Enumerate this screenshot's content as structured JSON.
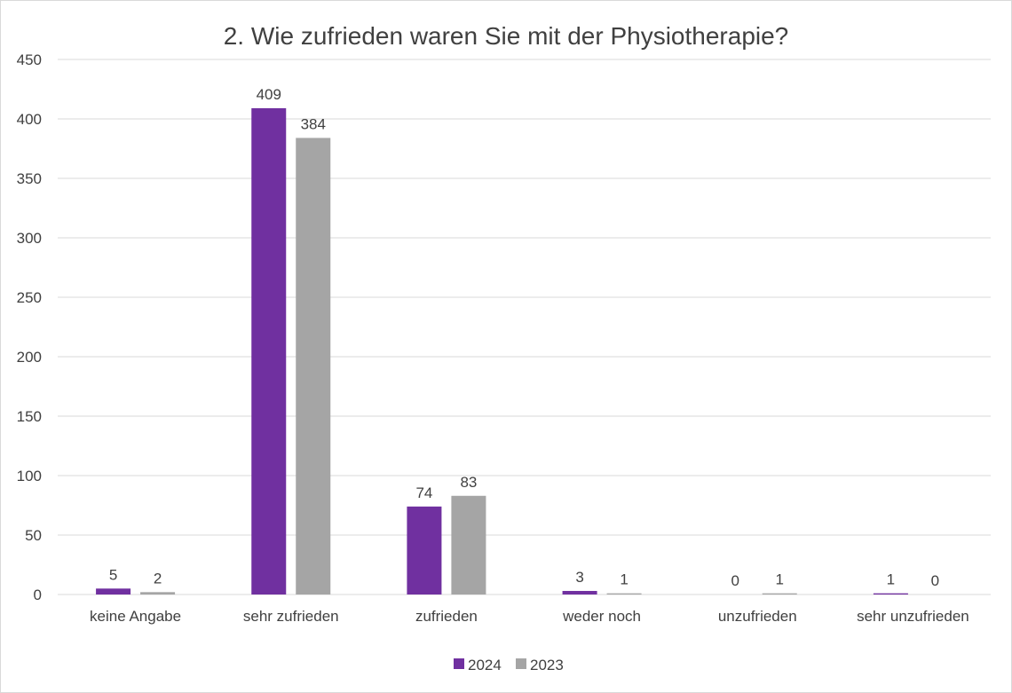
{
  "chart_data": {
    "type": "bar",
    "title": "2. Wie zufrieden waren Sie mit der Physiotherapie?",
    "xlabel": "",
    "ylabel": "",
    "ylim": [
      0,
      450
    ],
    "yticks": [
      0,
      50,
      100,
      150,
      200,
      250,
      300,
      350,
      400,
      450
    ],
    "grid": true,
    "legend_position": "bottom",
    "categories": [
      "keine Angabe",
      "sehr zufrieden",
      "zufrieden",
      "weder noch",
      "unzufrieden",
      "sehr unzufrieden"
    ],
    "series": [
      {
        "name": "2024",
        "color": "#7030a0",
        "values": [
          5,
          409,
          74,
          3,
          0,
          1
        ]
      },
      {
        "name": "2023",
        "color": "#a5a5a5",
        "values": [
          2,
          384,
          83,
          1,
          1,
          0
        ]
      }
    ]
  }
}
